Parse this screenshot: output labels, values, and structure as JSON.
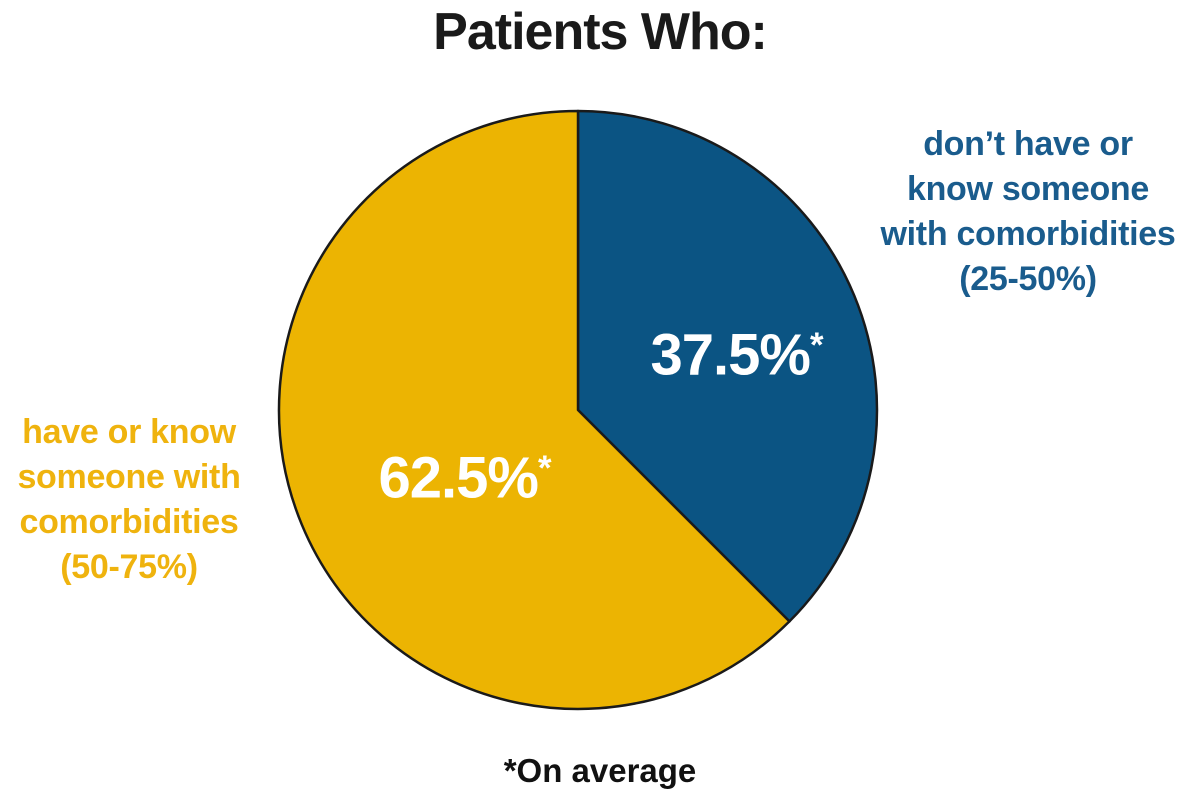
{
  "title": "Patients Who:",
  "footnote": "*On average",
  "colors": {
    "background": "#FFFFFF",
    "title_text": "#1A1A1A",
    "outline": "#1A1A1A",
    "value_text": "#FFFFFF",
    "footnote_text": "#111111"
  },
  "chart_data": {
    "type": "pie",
    "title": "Patients Who:",
    "start_angle_deg": 0,
    "direction": "clockwise",
    "legend_position": "side-callouts",
    "outline_color": "#1A1A1A",
    "footnote": "*On average",
    "slices": [
      {
        "id": "dont-have-or-know",
        "label": "don’t have or\nknow someone\nwith comorbidities\n(25-50%)",
        "value": 37.5,
        "display": "37.5%",
        "asterisk": "*",
        "color": "#0B5483",
        "label_color": "#1A5C8D",
        "value_text_color": "#FFFFFF"
      },
      {
        "id": "have-or-know",
        "label": "have or know\nsomeone with\ncomorbidities\n(50-75%)",
        "value": 62.5,
        "display": "62.5%",
        "asterisk": "*",
        "color": "#ECB402",
        "label_color": "#EFB30E",
        "value_text_color": "#FFFFFF"
      }
    ]
  }
}
